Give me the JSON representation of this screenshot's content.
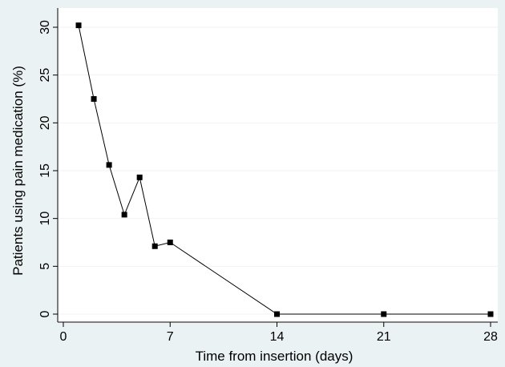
{
  "chart_data": {
    "type": "line",
    "title": "",
    "xlabel": "Time from insertion (days)",
    "ylabel": "Patients using pain medication (%)",
    "xlim": [
      0,
      28
    ],
    "ylim": [
      0,
      30
    ],
    "xticks": [
      0,
      7,
      14,
      21,
      28
    ],
    "yticks": [
      0,
      5,
      10,
      15,
      20,
      25,
      30
    ],
    "grid": true,
    "legend": "none",
    "series": [
      {
        "x": [
          1,
          2,
          3,
          4,
          5,
          6,
          7,
          14,
          21,
          28
        ],
        "y": [
          30.2,
          22.5,
          15.6,
          10.4,
          14.3,
          7.1,
          7.5,
          0,
          0,
          0
        ],
        "marker": "square",
        "color": "#000000"
      }
    ]
  },
  "colors": {
    "page_background": "#eaf2f3",
    "plot_background": "#ffffff",
    "grid": "#eef2f3",
    "series": "#000000"
  }
}
